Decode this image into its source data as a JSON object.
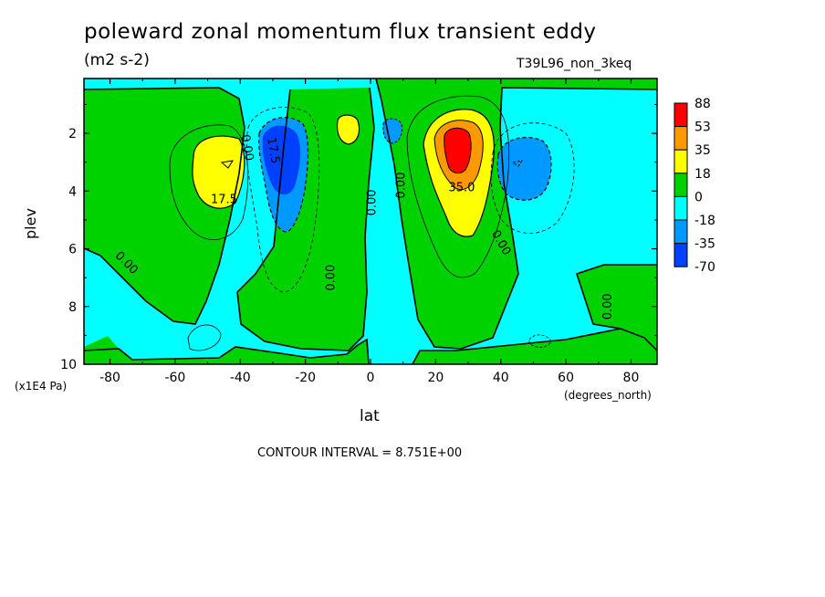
{
  "chart_data": {
    "type": "heatmap",
    "title": "poleward zonal momentum flux transient eddy",
    "units": "(m2 s-2)",
    "run_label": "T39L96_non_3keq",
    "xlabel": "lat",
    "x_units": "(degrees_north)",
    "ylabel": "plev",
    "y_units": "(x1E4 Pa)",
    "xlim": [
      -88,
      88
    ],
    "ylim": [
      10,
      0.1
    ],
    "x_ticks": [
      "-80",
      "-60",
      "-40",
      "-20",
      "0",
      "20",
      "40",
      "60",
      "80"
    ],
    "x_tick_values": [
      -80,
      -60,
      -40,
      -20,
      0,
      20,
      40,
      60,
      80
    ],
    "y_ticks": [
      "2",
      "4",
      "6",
      "8",
      "10"
    ],
    "y_tick_values": [
      2,
      4,
      6,
      8,
      10
    ],
    "contour_interval_text": "CONTOUR INTERVAL = 8.751E+00",
    "contour_labels": [
      {
        "text": "0.00",
        "lat": -38,
        "plev": 2.5,
        "rot": 80
      },
      {
        "text": "17.5",
        "lat": -30,
        "plev": 2.6,
        "rot": 80
      },
      {
        "text": "17.5",
        "lat": -45,
        "plev": 4.3,
        "rot": 0
      },
      {
        "text": "0.00",
        "lat": -75,
        "plev": 6.5,
        "rot": 45
      },
      {
        "text": "0.00",
        "lat": -12,
        "plev": 7.0,
        "rot": -90
      },
      {
        "text": "0.00",
        "lat": 0.5,
        "plev": 4.4,
        "rot": -90
      },
      {
        "text": "0.00",
        "lat": 9.5,
        "plev": 3.8,
        "rot": -90
      },
      {
        "text": "35.0",
        "lat": 28,
        "plev": 3.9,
        "rot": 0
      },
      {
        "text": "0.00",
        "lat": 40,
        "plev": 5.8,
        "rot": 60
      },
      {
        "text": "0.00",
        "lat": 73,
        "plev": 8.0,
        "rot": -90
      }
    ],
    "colorbar": {
      "labels": [
        "88",
        "53",
        "35",
        "18",
        "0",
        "-18",
        "-35",
        "-70"
      ],
      "colors": [
        "#ff0000",
        "#ff9900",
        "#ffff00",
        "#00d200",
        "#00ffff",
        "#0099ff",
        "#0040ff"
      ]
    },
    "colors": {
      "negative_light": "#00ffff",
      "negative_mid": "#0099ff",
      "negative_strong": "#0040ff",
      "positive_light": "#00d200",
      "positive_mid": "#ffff00",
      "positive_strong": "#ff9900",
      "positive_max": "#ff0000"
    },
    "features": [
      {
        "sign": "positive",
        "lat": -47,
        "plev": 3.1,
        "peak": 22
      },
      {
        "sign": "negative",
        "lat": -27,
        "plev": 3.0,
        "peak": -50
      },
      {
        "sign": "positive",
        "lat": -7,
        "plev": 1.9,
        "peak": 20
      },
      {
        "sign": "negative",
        "lat": 7,
        "plev": 1.9,
        "peak": -22
      },
      {
        "sign": "positive",
        "lat": 27,
        "plev": 2.6,
        "peak": 88
      },
      {
        "sign": "negative",
        "lat": 45,
        "plev": 3.1,
        "peak": -30
      }
    ]
  }
}
